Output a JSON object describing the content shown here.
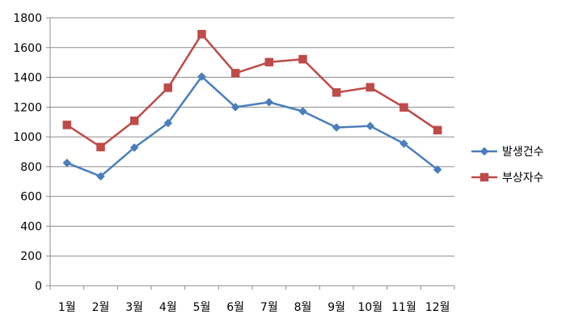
{
  "chart_data": {
    "type": "line",
    "categories": [
      "1월",
      "2월",
      "3월",
      "4월",
      "5월",
      "6월",
      "7월",
      "8월",
      "9월",
      "10월",
      "11월",
      "12월"
    ],
    "series": [
      {
        "name": "발생건수",
        "color": "#4a7ebb",
        "marker": "diamond",
        "values": [
          825,
          735,
          928,
          1093,
          1405,
          1200,
          1233,
          1172,
          1063,
          1073,
          955,
          780
        ]
      },
      {
        "name": "부상자수",
        "color": "#be4b48",
        "marker": "square",
        "values": [
          1080,
          932,
          1108,
          1330,
          1690,
          1428,
          1502,
          1522,
          1298,
          1333,
          1198,
          1045
        ]
      }
    ],
    "ylim": [
      0,
      1800
    ],
    "yticks": [
      0,
      200,
      400,
      600,
      800,
      1000,
      1200,
      1400,
      1600,
      1800
    ],
    "grid": true,
    "legend_position": "right",
    "title": "",
    "xlabel": "",
    "ylabel": ""
  }
}
